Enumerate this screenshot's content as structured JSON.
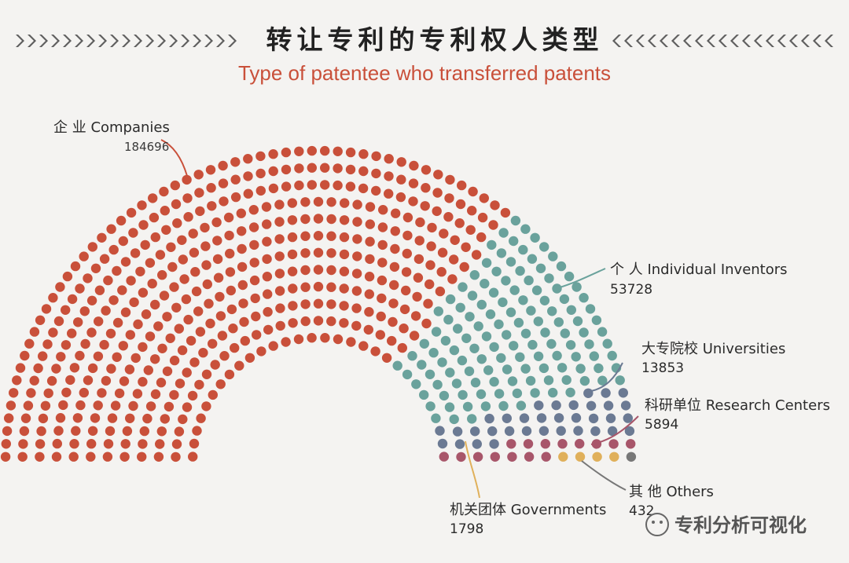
{
  "title": "转让专利的专利权人类型",
  "subtitle": "Type of patentee who transferred patents",
  "watermark": "专利分析可视化",
  "colors": {
    "companies": "#c9503a",
    "individuals": "#6aa29c",
    "universities": "#6b7a93",
    "research": "#a8566a",
    "governments": "#e0b05a",
    "others": "#777777",
    "chevron": "#5e5e5e"
  },
  "chart_data": {
    "type": "dot-semicircle",
    "segments": [
      {
        "cn": "企 业",
        "en": "Companies",
        "label": "企 业 Companies",
        "value": 184696,
        "value_text": "184696",
        "color": "#c9503a"
      },
      {
        "cn": "个 人",
        "en": "Individual Inventors",
        "label": "个 人 Individual Inventors",
        "value": 53728,
        "value_text": "53728",
        "color": "#6aa29c"
      },
      {
        "cn": "大专院校",
        "en": "Universities",
        "label": "大专院校 Universities",
        "value": 13853,
        "value_text": "13853",
        "color": "#6b7a93"
      },
      {
        "cn": "科研单位",
        "en": "Research Centers",
        "label": "科研单位 Research Centers",
        "value": 5894,
        "value_text": "5894",
        "color": "#a8566a"
      },
      {
        "cn": "机关团体",
        "en": "Governments",
        "label": "机关团体 Governments",
        "value": 1798,
        "value_text": "1798",
        "color": "#e0b05a"
      },
      {
        "cn": "其 他",
        "en": "Others",
        "label": "其 他 Others",
        "value": 432,
        "value_text": "432",
        "color": "#777777"
      }
    ]
  }
}
